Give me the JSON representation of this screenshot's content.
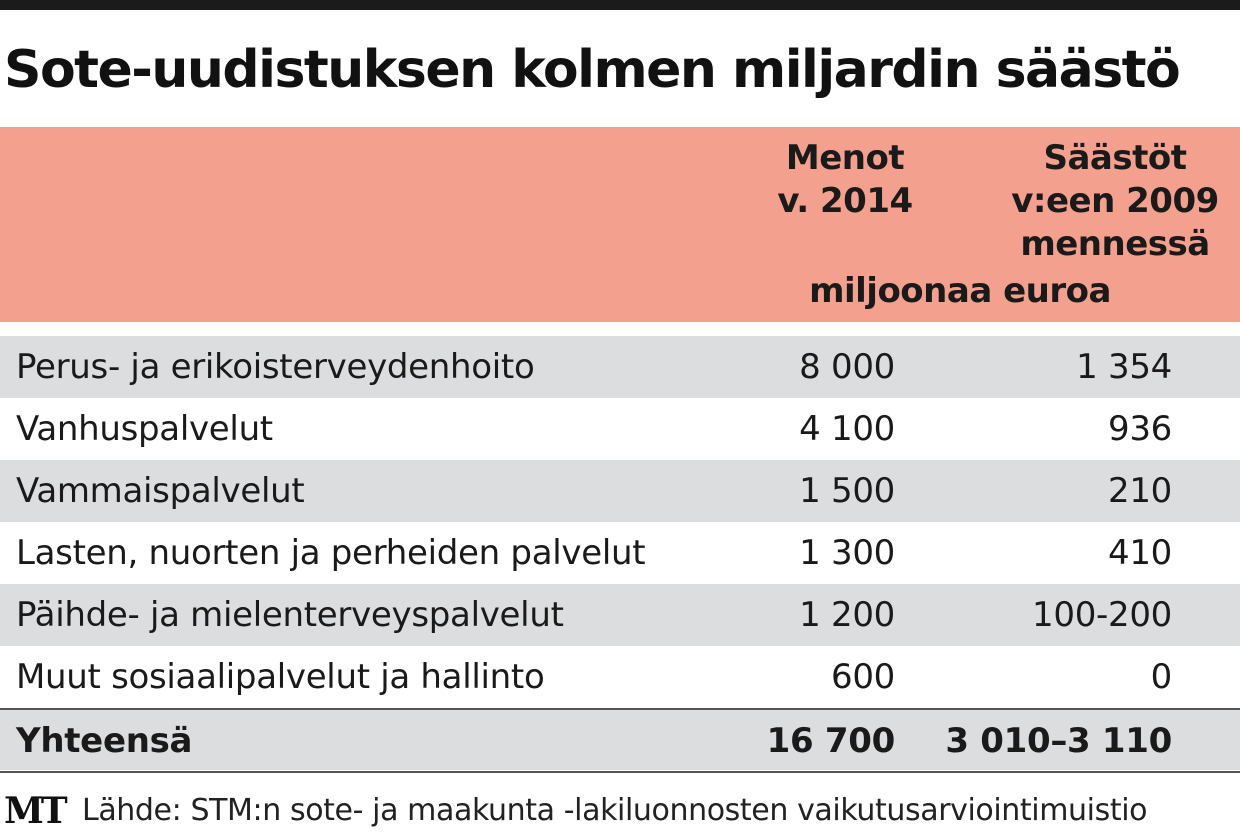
{
  "title": "Sote-uudistuksen kolmen miljardin säästö",
  "header": {
    "col1": [
      "Menot",
      "v. 2014"
    ],
    "col2": [
      "Säästöt",
      "v:een 2009",
      "mennessä"
    ],
    "unit": "miljoonaa euroa"
  },
  "rows": [
    {
      "label": "Perus- ja erikoisterveydenhoito",
      "menot": "8 000",
      "saastot": "1 354"
    },
    {
      "label": "Vanhuspalvelut",
      "menot": "4 100",
      "saastot": "936"
    },
    {
      "label": "Vammaispalvelut",
      "menot": "1 500",
      "saastot": "210"
    },
    {
      "label": "Lasten, nuorten ja perheiden palvelut",
      "menot": "1 300",
      "saastot": "410"
    },
    {
      "label": "Päihde- ja mielenterveyspalvelut",
      "menot": "1 200",
      "saastot": "100-200"
    },
    {
      "label": "Muut sosiaalipalvelut ja hallinto",
      "menot": "600",
      "saastot": "0"
    }
  ],
  "total": {
    "label": "Yhteensä",
    "menot": "16 700",
    "saastot": "3 010–3 110"
  },
  "footer": {
    "logo": "MT",
    "source": "Lähde: STM:n sote- ja maakunta -lakiluonnosten vaikutusarviointimuistio"
  },
  "colors": {
    "header_bg": "#f4a08e",
    "row_shade": "#dcdddf",
    "top_bar": "#1b1b1b"
  }
}
